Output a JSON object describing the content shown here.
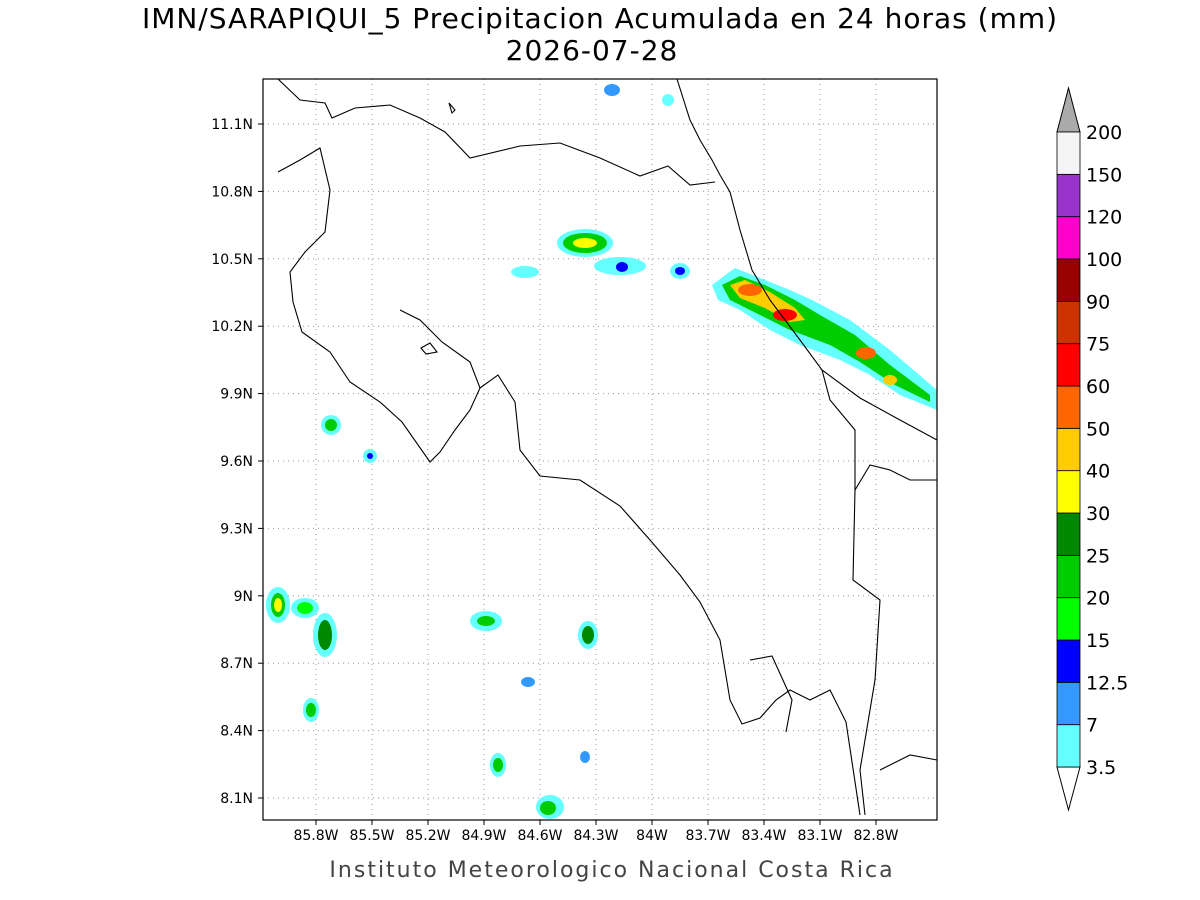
{
  "title": "IMN/SARAPIQUI_5 Precipitacion Acumulada en 24 horas (mm)",
  "subtitle": "2026-07-28",
  "lon_ticks": [
    "85.8W",
    "85.5W",
    "85.2W",
    "84.9W",
    "84.6W",
    "84.3W",
    "84W",
    "83.7W",
    "83.4W",
    "83.1W",
    "82.8W"
  ],
  "lat_ticks": [
    "11.1N",
    "10.8N",
    "10.5N",
    "10.2N",
    "9.9N",
    "9.6N",
    "9.3N",
    "9N",
    "8.7N",
    "8.4N",
    "8.1N"
  ],
  "colorbar": {
    "labels": [
      "3.5",
      "7",
      "12.5",
      "15",
      "20",
      "25",
      "30",
      "40",
      "50",
      "60",
      "75",
      "90",
      "100",
      "120",
      "150",
      "200"
    ],
    "colors": [
      "#66ffff",
      "#3399ff",
      "#0000ff",
      "#00ff00",
      "#00cc00",
      "#008800",
      "#ffff00",
      "#ffcc00",
      "#ff6600",
      "#ff0000",
      "#cc3300",
      "#990000",
      "#ff00cc",
      "#9933cc",
      "#f5f5f5"
    ]
  },
  "footer": "Instituto Meteorologico Nacional Costa Rica"
}
